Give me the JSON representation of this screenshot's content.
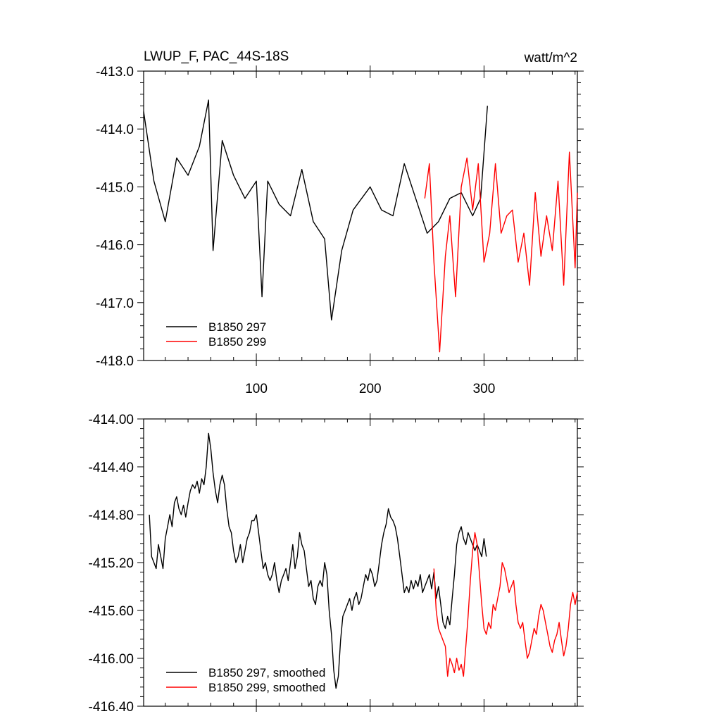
{
  "chart_data": [
    {
      "type": "line",
      "title": "LWUP_F, PAC_44S-18S",
      "units": "watt/m^2",
      "xlim": [
        1,
        382
      ],
      "ylim": [
        -418,
        -413
      ],
      "x_ticks": [
        100,
        200,
        300
      ],
      "x_tick_labels": [
        "100",
        "200",
        "300"
      ],
      "y_ticks": [
        -413,
        -414,
        -415,
        -416,
        -417,
        -418
      ],
      "y_tick_labels": [
        "-413.0",
        "-414.0",
        "-415.0",
        "-416.0",
        "-417.0",
        "-418.0"
      ],
      "legend": [
        "B1850 297",
        "B1850 299"
      ],
      "series": [
        {
          "name": "B1850 297",
          "color": "#000000",
          "x": [
            1,
            10,
            20,
            30,
            40,
            50,
            58,
            62,
            70,
            80,
            90,
            100,
            105,
            110,
            120,
            130,
            140,
            150,
            160,
            166,
            175,
            185,
            200,
            210,
            220,
            230,
            240,
            250,
            260,
            270,
            280,
            290,
            297,
            303
          ],
          "y": [
            -413.7,
            -414.9,
            -415.6,
            -414.5,
            -414.8,
            -414.3,
            -413.5,
            -416.1,
            -414.2,
            -414.8,
            -415.2,
            -414.9,
            -416.9,
            -414.9,
            -415.3,
            -415.5,
            -414.7,
            -415.6,
            -415.9,
            -417.3,
            -416.1,
            -415.4,
            -415.0,
            -415.4,
            -415.5,
            -414.6,
            -415.2,
            -415.8,
            -415.6,
            -415.2,
            -415.1,
            -415.5,
            -415.2,
            -413.6
          ]
        },
        {
          "name": "B1850 299",
          "color": "#ff0000",
          "x": [
            248,
            252,
            256,
            261,
            266,
            270,
            275,
            280,
            285,
            290,
            295,
            300,
            305,
            310,
            315,
            320,
            325,
            330,
            335,
            340,
            345,
            350,
            355,
            360,
            365,
            370,
            375,
            380,
            382
          ],
          "y": [
            -415.2,
            -414.6,
            -416.3,
            -417.85,
            -416.2,
            -415.5,
            -416.9,
            -415.0,
            -414.5,
            -415.4,
            -414.6,
            -416.3,
            -415.8,
            -414.6,
            -415.8,
            -415.5,
            -415.4,
            -416.3,
            -415.8,
            -416.7,
            -415.1,
            -416.2,
            -415.5,
            -416.1,
            -414.9,
            -416.7,
            -414.4,
            -416.4,
            -415.1
          ]
        }
      ]
    },
    {
      "type": "line",
      "xlim": [
        1,
        382
      ],
      "ylim": [
        -416.4,
        -414.0
      ],
      "x_ticks": [
        100,
        200,
        300
      ],
      "y_ticks": [
        -414.0,
        -414.4,
        -414.8,
        -415.2,
        -415.6,
        -416.0,
        -416.4
      ],
      "y_tick_labels": [
        "-414.00",
        "-414.40",
        "-414.80",
        "-415.20",
        "-415.60",
        "-416.00",
        "-416.40"
      ],
      "legend": [
        "B1850 297, smoothed",
        "B1850 299, smoothed"
      ],
      "series": [
        {
          "name": "B1850 297, smoothed",
          "color": "#000000",
          "x": [
            6,
            8,
            10,
            12,
            14,
            16,
            18,
            20,
            22,
            24,
            26,
            28,
            30,
            32,
            34,
            36,
            38,
            40,
            42,
            44,
            46,
            48,
            50,
            52,
            54,
            56,
            58,
            60,
            62,
            64,
            66,
            68,
            70,
            72,
            74,
            76,
            78,
            80,
            82,
            84,
            86,
            88,
            90,
            92,
            94,
            96,
            98,
            100,
            102,
            104,
            106,
            108,
            110,
            112,
            114,
            116,
            118,
            120,
            122,
            124,
            126,
            128,
            130,
            132,
            134,
            136,
            138,
            140,
            142,
            144,
            146,
            148,
            150,
            152,
            154,
            156,
            158,
            160,
            162,
            164,
            166,
            168,
            170,
            172,
            174,
            176,
            178,
            180,
            182,
            184,
            186,
            188,
            190,
            192,
            194,
            196,
            198,
            200,
            202,
            204,
            206,
            208,
            210,
            212,
            214,
            216,
            218,
            220,
            222,
            224,
            226,
            228,
            230,
            232,
            234,
            236,
            238,
            240,
            242,
            244,
            246,
            248,
            250,
            252,
            254,
            256,
            258,
            260,
            262,
            264,
            266,
            268,
            270,
            272,
            274,
            276,
            278,
            280,
            282,
            284,
            286,
            288,
            290,
            292,
            294,
            296,
            298,
            300,
            302
          ],
          "y": [
            -414.8,
            -415.15,
            -415.2,
            -415.25,
            -415.05,
            -415.15,
            -415.25,
            -415.0,
            -414.9,
            -414.8,
            -414.9,
            -414.7,
            -414.65,
            -414.75,
            -414.8,
            -414.72,
            -414.82,
            -414.7,
            -414.6,
            -414.55,
            -414.58,
            -414.52,
            -414.62,
            -414.5,
            -414.55,
            -414.4,
            -414.12,
            -414.25,
            -414.45,
            -414.6,
            -414.7,
            -414.55,
            -414.47,
            -414.55,
            -414.75,
            -414.9,
            -414.95,
            -415.1,
            -415.2,
            -415.15,
            -415.05,
            -415.2,
            -415.1,
            -415.0,
            -414.95,
            -414.85,
            -414.85,
            -414.8,
            -414.95,
            -415.1,
            -415.25,
            -415.2,
            -415.3,
            -415.35,
            -415.3,
            -415.2,
            -415.35,
            -415.45,
            -415.35,
            -415.3,
            -415.25,
            -415.35,
            -415.2,
            -415.05,
            -415.25,
            -415.15,
            -414.95,
            -415.05,
            -415.1,
            -415.25,
            -415.4,
            -415.35,
            -415.5,
            -415.55,
            -415.4,
            -415.35,
            -415.4,
            -415.2,
            -415.3,
            -415.6,
            -415.8,
            -416.1,
            -416.25,
            -416.15,
            -415.85,
            -415.65,
            -415.6,
            -415.55,
            -415.5,
            -415.6,
            -415.5,
            -415.45,
            -415.55,
            -415.5,
            -415.4,
            -415.3,
            -415.35,
            -415.25,
            -415.3,
            -415.4,
            -415.35,
            -415.2,
            -415.05,
            -414.95,
            -414.88,
            -414.75,
            -414.82,
            -414.85,
            -414.9,
            -415.0,
            -415.15,
            -415.3,
            -415.45,
            -415.4,
            -415.45,
            -415.35,
            -415.42,
            -415.35,
            -415.4,
            -415.3,
            -415.45,
            -415.4,
            -415.35,
            -415.3,
            -415.42,
            -415.28,
            -415.5,
            -415.4,
            -415.55,
            -415.7,
            -415.75,
            -415.65,
            -415.72,
            -415.5,
            -415.3,
            -415.05,
            -414.95,
            -414.9,
            -415.0,
            -415.05,
            -414.95,
            -415.0,
            -415.05,
            -415.1,
            -415.05,
            -415.1,
            -415.15,
            -415.0,
            -415.15
          ]
        },
        {
          "name": "B1850 299, smoothed",
          "color": "#ff0000",
          "x": [
            256,
            258,
            260,
            262,
            264,
            266,
            268,
            270,
            272,
            274,
            276,
            278,
            280,
            282,
            284,
            286,
            288,
            290,
            292,
            294,
            296,
            298,
            300,
            302,
            304,
            306,
            308,
            310,
            312,
            314,
            316,
            318,
            320,
            322,
            324,
            326,
            328,
            330,
            332,
            334,
            336,
            338,
            340,
            342,
            344,
            346,
            348,
            350,
            352,
            354,
            356,
            358,
            360,
            362,
            364,
            366,
            368,
            370,
            372,
            374,
            376,
            378,
            380,
            382
          ],
          "y": [
            -415.25,
            -415.6,
            -415.75,
            -415.8,
            -415.85,
            -415.9,
            -416.15,
            -416.0,
            -416.05,
            -416.12,
            -416.0,
            -416.1,
            -416.05,
            -416.15,
            -415.9,
            -415.65,
            -415.35,
            -415.1,
            -414.95,
            -415.05,
            -415.3,
            -415.55,
            -415.75,
            -415.8,
            -415.7,
            -415.75,
            -415.55,
            -415.6,
            -415.5,
            -415.4,
            -415.2,
            -415.25,
            -415.35,
            -415.45,
            -415.4,
            -415.35,
            -415.55,
            -415.7,
            -415.75,
            -415.7,
            -415.85,
            -416.0,
            -415.95,
            -415.85,
            -415.75,
            -415.8,
            -415.65,
            -415.55,
            -415.6,
            -415.7,
            -415.8,
            -415.9,
            -415.95,
            -415.85,
            -415.8,
            -415.7,
            -415.85,
            -415.98,
            -415.9,
            -415.75,
            -415.55,
            -415.45,
            -415.55,
            -415.45
          ]
        }
      ]
    }
  ]
}
